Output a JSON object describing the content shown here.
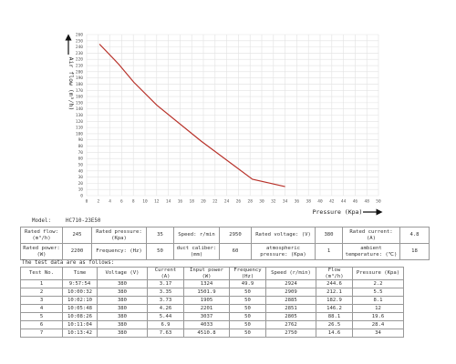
{
  "chart_data": {
    "type": "line",
    "x_label": "Pressure (Kpa)",
    "y_label": "Air flow (m³/h)",
    "x": [
      2.2,
      5.5,
      8.1,
      12,
      19.6,
      28.4,
      34
    ],
    "values": [
      244.6,
      212.1,
      182.9,
      146.2,
      88.1,
      26.5,
      14.6
    ],
    "color": "#b8322a",
    "xlim": [
      0,
      50
    ],
    "xticks": [
      0,
      2,
      4,
      6,
      8,
      10,
      12,
      14,
      16,
      18,
      20,
      22,
      24,
      26,
      28,
      30,
      32,
      34,
      36,
      38,
      40,
      42,
      44,
      46,
      48,
      50
    ],
    "ylim": [
      0,
      260
    ],
    "yticks": [
      0,
      10,
      20,
      30,
      40,
      50,
      60,
      70,
      80,
      90,
      100,
      110,
      120,
      130,
      140,
      150,
      160,
      170,
      180,
      190,
      200,
      210,
      220,
      230,
      240,
      250,
      260
    ],
    "grid": true
  },
  "document": {
    "model_label": "Model:",
    "model": "HC710-23E50",
    "rated": [
      [
        "Rated flow: (m³/h)",
        "245",
        "Rated pressure: (Kpa)",
        "35",
        "Speed: r/min",
        "2950",
        "Rated voltage: (V)",
        "380",
        "Rated current: (A)",
        "4.8"
      ],
      [
        "Rated power: (W)",
        "2200",
        "Frequency: (Hz)",
        "50",
        "duct caliber: (mm)",
        "60",
        "atmospheric pressure: (Kpa)",
        "1",
        "ambient temperature: (℃)",
        "18"
      ]
    ],
    "test_intro": "The test data are as follows:",
    "test_header": [
      "Test No.",
      "Time",
      "Voltage (V)",
      "Current (A)",
      "Input power (W)",
      "Frequency (Hz)",
      "Speed (r/min)",
      "Flow (m³/h)",
      "Pressure (Kpa)"
    ],
    "test_rows": [
      [
        "1",
        "9:57:54",
        "380",
        "3.17",
        "1324",
        "49.9",
        "2924",
        "244.6",
        "2.2"
      ],
      [
        "2",
        "10:00:32",
        "380",
        "3.35",
        "1501.9",
        "50",
        "2909",
        "212.1",
        "5.5"
      ],
      [
        "3",
        "10:02:10",
        "380",
        "3.73",
        "1905",
        "50",
        "2885",
        "182.9",
        "8.1"
      ],
      [
        "4",
        "10:05:48",
        "380",
        "4.26",
        "2201",
        "50",
        "2851",
        "146.2",
        "12"
      ],
      [
        "5",
        "10:08:26",
        "380",
        "5.44",
        "3037",
        "50",
        "2805",
        "88.1",
        "19.6"
      ],
      [
        "6",
        "10:11:04",
        "380",
        "6.9",
        "4033",
        "50",
        "2762",
        "26.5",
        "28.4"
      ],
      [
        "7",
        "10:13:42",
        "380",
        "7.63",
        "4510.8",
        "50",
        "2750",
        "14.6",
        "34"
      ]
    ]
  }
}
